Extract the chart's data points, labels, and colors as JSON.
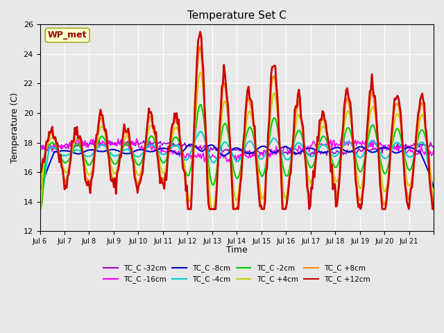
{
  "title": "Temperature Set C",
  "xlabel": "Time",
  "ylabel": "Temperature (C)",
  "ylim": [
    12,
    26
  ],
  "yticks": [
    12,
    14,
    16,
    18,
    20,
    22,
    24,
    26
  ],
  "background_color": "#e8e8e8",
  "annotation_text": "WP_met",
  "annotation_color": "#8b0000",
  "annotation_bg": "#ffffcc",
  "series": [
    {
      "label": "TC_C -32cm",
      "color": "#9900cc",
      "lw": 1.2
    },
    {
      "label": "TC_C -16cm",
      "color": "#ff00ff",
      "lw": 1.2
    },
    {
      "label": "TC_C -8cm",
      "color": "#0000cc",
      "lw": 1.5
    },
    {
      "label": "TC_C -4cm",
      "color": "#00cccc",
      "lw": 1.5
    },
    {
      "label": "TC_C -2cm",
      "color": "#00cc00",
      "lw": 1.5
    },
    {
      "label": "TC_C +4cm",
      "color": "#cccc00",
      "lw": 1.5
    },
    {
      "label": "TC_C +8cm",
      "color": "#ff8800",
      "lw": 1.8
    },
    {
      "label": "TC_C +12cm",
      "color": "#cc0000",
      "lw": 2.0
    }
  ],
  "xtick_positions": [
    0,
    1,
    2,
    3,
    4,
    5,
    6,
    7,
    8,
    9,
    10,
    11,
    12,
    13,
    14,
    15,
    16
  ],
  "xtick_labels": [
    "Jul 6",
    "Jul 7",
    "Jul 8",
    "Jul 9",
    "Jul 10",
    "Jul 11",
    "Jul 12",
    "Jul 13",
    "Jul 14",
    "Jul 15",
    "Jul 16",
    "Jul 17",
    "Jul 18",
    "Jul 19",
    "Jul 20",
    "Jul 21",
    ""
  ],
  "n_days": 16,
  "pts_per_day": 24
}
